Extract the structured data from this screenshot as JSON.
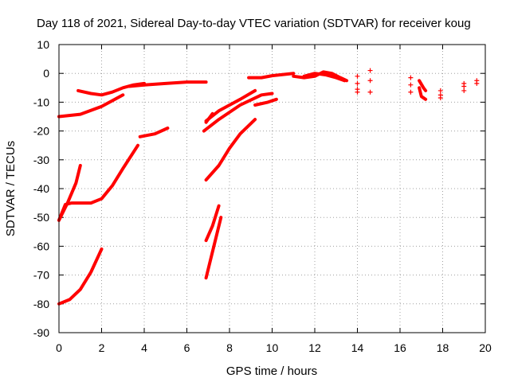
{
  "chart_data": {
    "type": "scatter",
    "title": "Day 118 of 2021, Sidereal Day-to-day VTEC variation (SDTVAR) for receiver koug",
    "xlabel": "GPS time / hours",
    "ylabel": "SDTVAR / TECUs",
    "xlim": [
      0,
      20
    ],
    "ylim": [
      -90,
      10
    ],
    "xticks": [
      0,
      2,
      4,
      6,
      8,
      10,
      12,
      14,
      16,
      18,
      20
    ],
    "yticks": [
      10,
      0,
      -10,
      -20,
      -30,
      -40,
      -50,
      -60,
      -70,
      -80,
      -90
    ],
    "grid": true,
    "color": "#ff0000",
    "marker": "plus",
    "tracks": [
      [
        [
          0,
          -15
        ],
        [
          1,
          -14.2
        ],
        [
          2,
          -11.5
        ],
        [
          3,
          -7.5
        ]
      ],
      [
        [
          0,
          -80
        ],
        [
          0.5,
          -78.5
        ],
        [
          1,
          -75
        ],
        [
          1.5,
          -69
        ],
        [
          2,
          -61
        ]
      ],
      [
        [
          0,
          -51
        ],
        [
          0.3,
          -45.5
        ],
        [
          0.6,
          -45
        ],
        [
          1,
          -45
        ],
        [
          1.5,
          -45
        ],
        [
          2,
          -43.5
        ],
        [
          2.5,
          -39
        ],
        [
          3,
          -33
        ],
        [
          3.7,
          -25
        ]
      ],
      [
        [
          0,
          -51
        ],
        [
          0.4,
          -45
        ],
        [
          0.8,
          -38
        ],
        [
          1,
          -32
        ]
      ],
      [
        [
          0.9,
          -6
        ],
        [
          1.5,
          -7
        ],
        [
          2,
          -7.5
        ],
        [
          2.5,
          -6.5
        ],
        [
          3,
          -5
        ],
        [
          3.5,
          -4
        ],
        [
          4,
          -3.5
        ]
      ],
      [
        [
          3.8,
          -22
        ],
        [
          4.5,
          -21
        ],
        [
          5.1,
          -19
        ]
      ],
      [
        [
          3.3,
          -4.5
        ],
        [
          4,
          -4
        ],
        [
          5,
          -3.5
        ],
        [
          6,
          -3
        ],
        [
          6.9,
          -3
        ]
      ],
      [
        [
          6.9,
          -37
        ],
        [
          7.5,
          -32
        ],
        [
          8,
          -26
        ],
        [
          8.5,
          -21
        ],
        [
          9.2,
          -16
        ]
      ],
      [
        [
          6.8,
          -20
        ],
        [
          7.5,
          -16
        ],
        [
          8.5,
          -11
        ],
        [
          9.5,
          -7.5
        ],
        [
          10,
          -7
        ]
      ],
      [
        [
          6.9,
          -16.5
        ],
        [
          7.5,
          -13
        ],
        [
          8.5,
          -9
        ],
        [
          9.2,
          -6
        ]
      ],
      [
        [
          6.9,
          -17
        ],
        [
          7.2,
          -14
        ]
      ],
      [
        [
          6.9,
          -58
        ],
        [
          7.2,
          -53
        ],
        [
          7.5,
          -46
        ]
      ],
      [
        [
          6.9,
          -71
        ],
        [
          7.2,
          -62
        ],
        [
          7.6,
          -50
        ]
      ],
      [
        [
          9.2,
          -11
        ],
        [
          9.8,
          -10
        ],
        [
          10.2,
          -9
        ]
      ],
      [
        [
          8.9,
          -1.5
        ],
        [
          9.5,
          -1.5
        ],
        [
          10,
          -0.8
        ],
        [
          11,
          0
        ]
      ],
      [
        [
          11,
          -1
        ],
        [
          11.5,
          -1.5
        ],
        [
          12,
          -1
        ],
        [
          12.4,
          0.5
        ],
        [
          12.8,
          0
        ],
        [
          13.2,
          -1.5
        ],
        [
          13.5,
          -2.5
        ]
      ],
      [
        [
          11.5,
          -1
        ],
        [
          12,
          0
        ],
        [
          12.5,
          -0.5
        ],
        [
          13,
          -1.5
        ],
        [
          13.4,
          -2.5
        ]
      ],
      [
        [
          16.9,
          -2.5
        ],
        [
          17.1,
          -5
        ],
        [
          17.2,
          -6
        ]
      ],
      [
        [
          16.9,
          -5
        ],
        [
          17,
          -8
        ],
        [
          17.2,
          -9
        ]
      ]
    ],
    "points": [
      [
        14,
        -1
      ],
      [
        14,
        -3.5
      ],
      [
        14,
        -5.5
      ],
      [
        14,
        -6.5
      ],
      [
        14.6,
        1
      ],
      [
        14.6,
        -2.5
      ],
      [
        14.6,
        -6.5
      ],
      [
        16.5,
        -1.5
      ],
      [
        16.5,
        -4
      ],
      [
        16.5,
        -6.5
      ],
      [
        17.9,
        -6
      ],
      [
        17.9,
        -7.5
      ],
      [
        17.9,
        -8.5
      ],
      [
        19,
        -3.5
      ],
      [
        19,
        -4.5
      ],
      [
        19,
        -6
      ],
      [
        19.6,
        -2.5
      ],
      [
        19.6,
        -3.5
      ]
    ]
  }
}
